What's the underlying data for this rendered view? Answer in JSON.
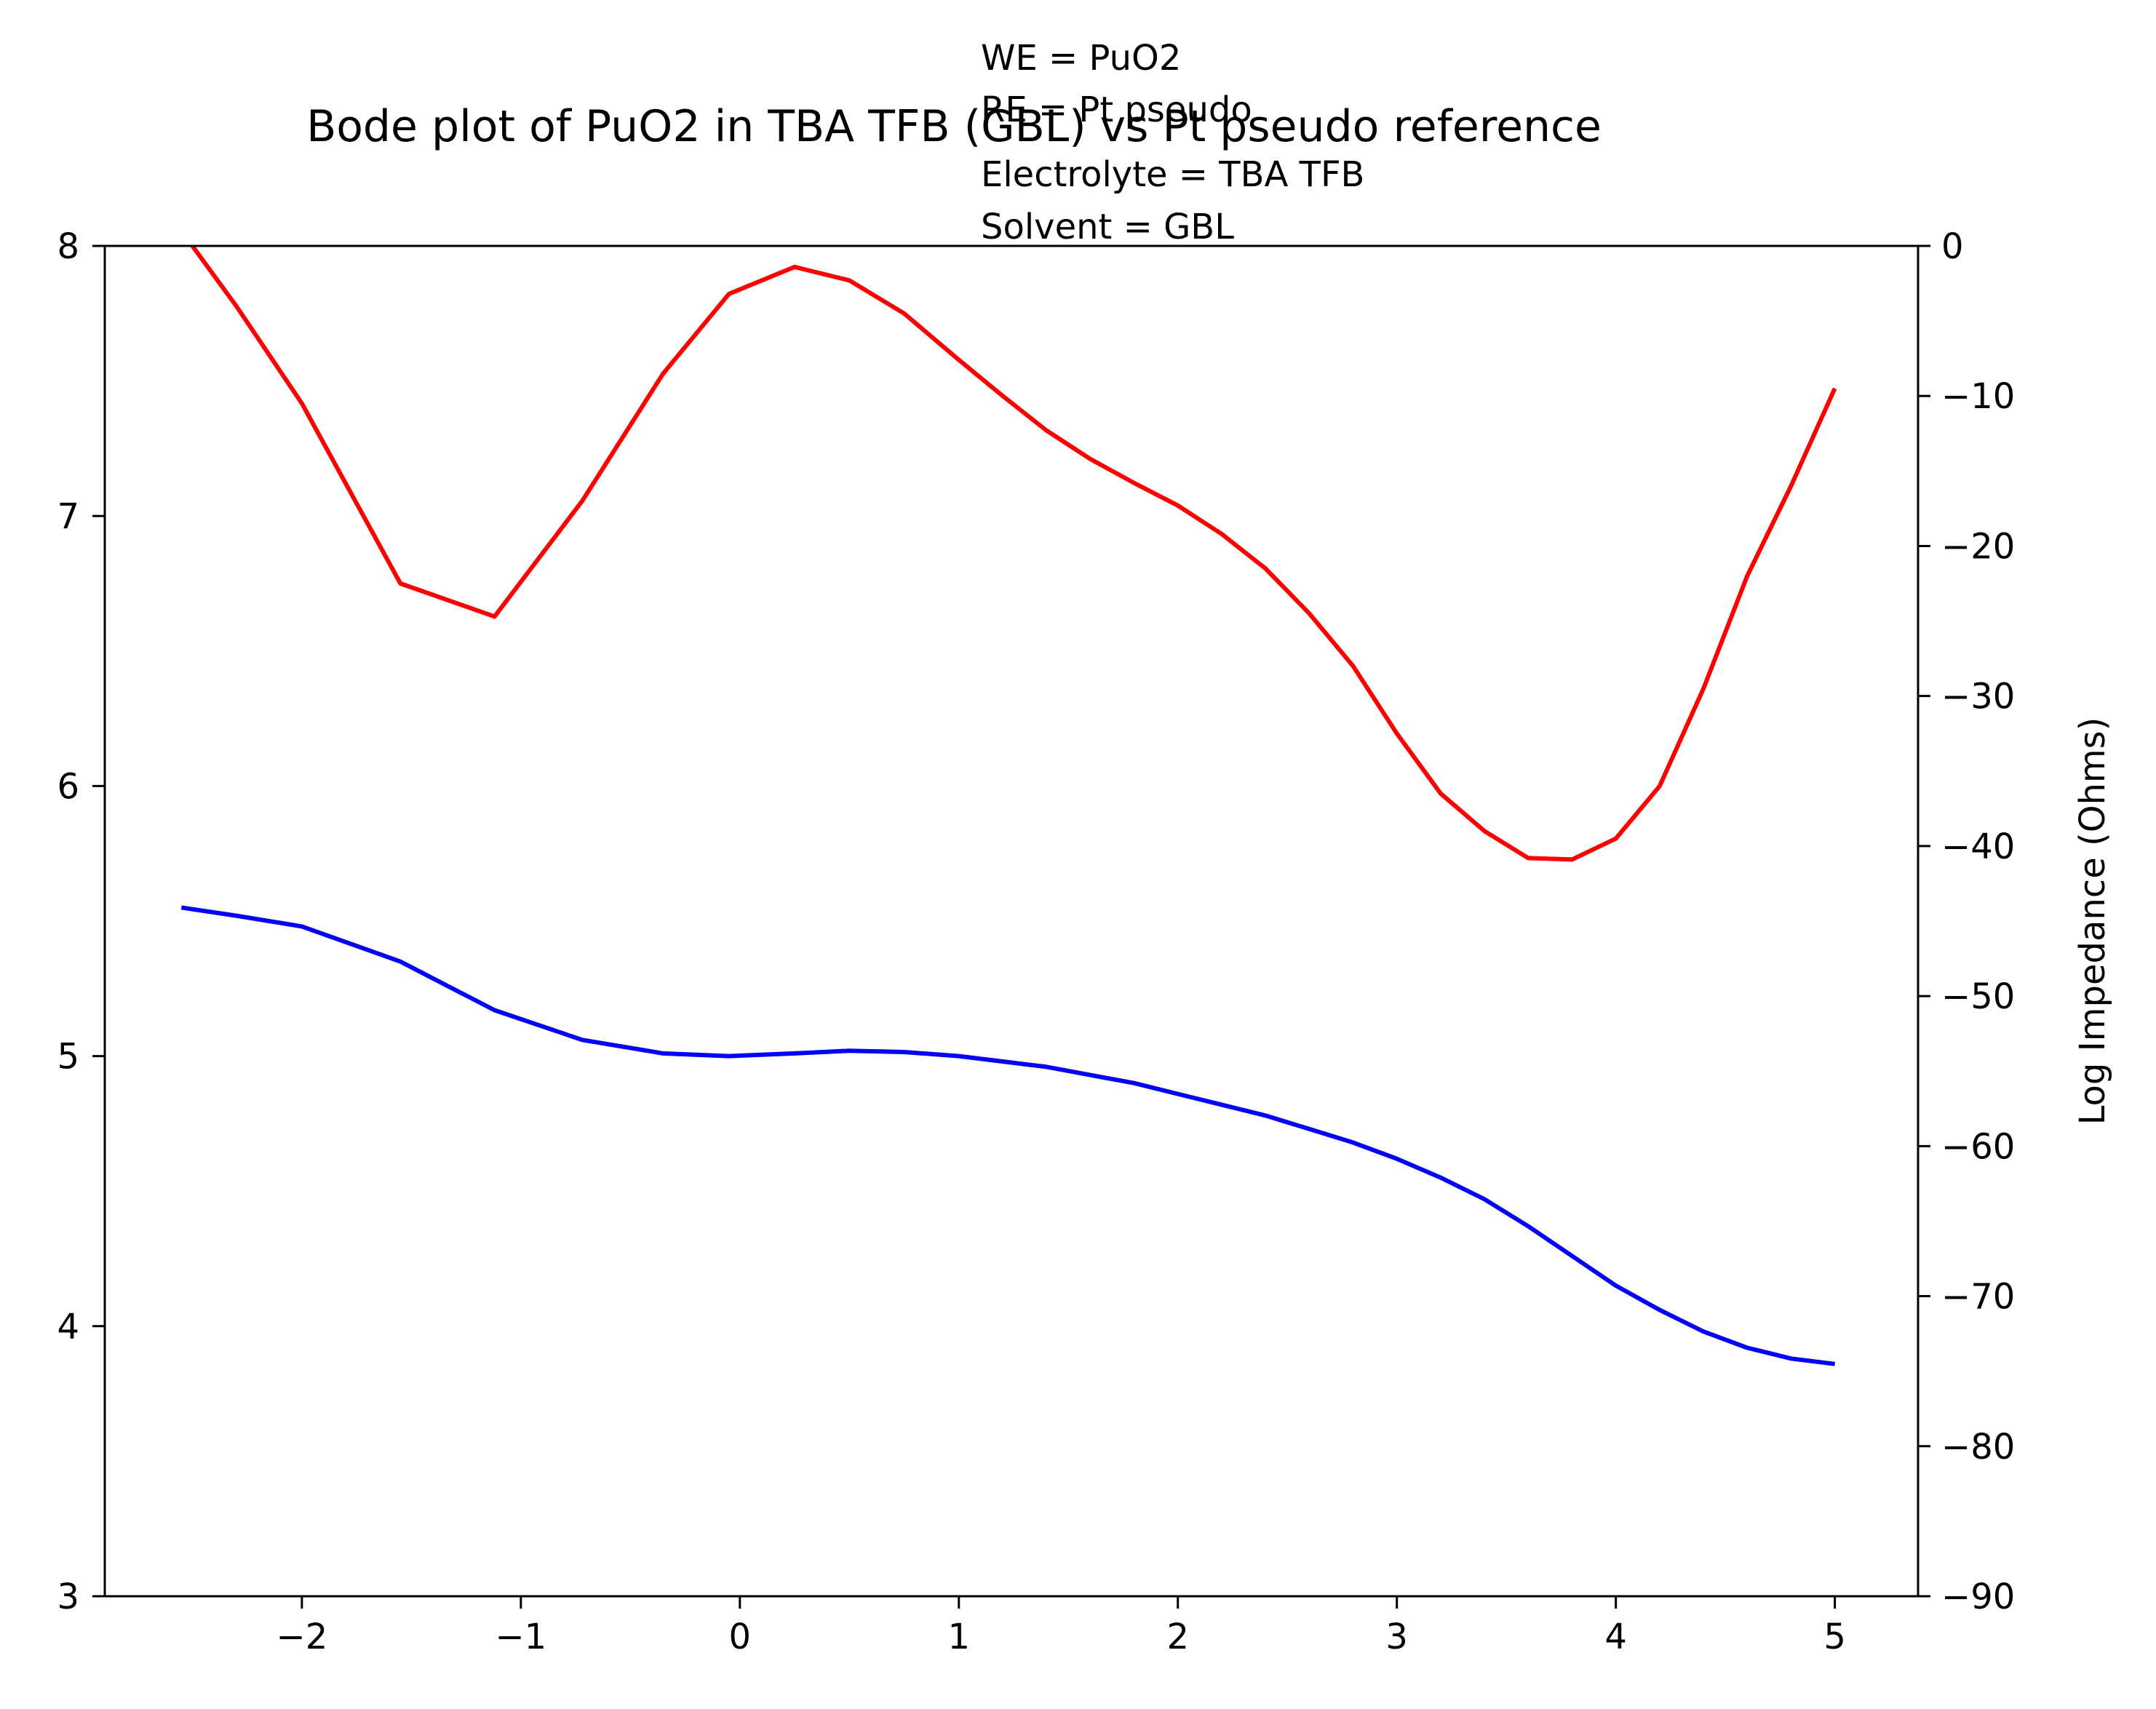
{
  "chart_data": {
    "type": "line",
    "title": "Bode plot of PuO2 in TBA TFB (GBL) vs Pt pseudo reference",
    "annotations": [
      "WE = PuO2",
      "RE = Pt pseudo",
      "Electrolyte = TBA TFB",
      "Solvent = GBL"
    ],
    "xlabel": "",
    "ylabel_left": "",
    "ylabel_right": "Log Impedance (Ohms)",
    "xlim": [
      -2.9,
      5.38
    ],
    "ylim_left": [
      3,
      8
    ],
    "ylim_right": [
      -90,
      0
    ],
    "x_ticks": [
      -2,
      -1,
      0,
      1,
      2,
      3,
      4,
      5
    ],
    "x_tick_labels": [
      "−2",
      "−1",
      "0",
      "1",
      "2",
      "3",
      "4",
      "5"
    ],
    "y_left_ticks": [
      3,
      4,
      5,
      6,
      7,
      8
    ],
    "y_left_tick_labels": [
      "3",
      "4",
      "5",
      "6",
      "7",
      "8"
    ],
    "y_right_ticks": [
      0,
      -10,
      -20,
      -30,
      -40,
      -50,
      -60,
      -70,
      -80,
      -90
    ],
    "y_right_tick_labels": [
      "0",
      "−10",
      "−20",
      "−30",
      "−40",
      "−50",
      "−60",
      "−70",
      "−80",
      "−90"
    ],
    "grid": false,
    "series": [
      {
        "axis": "left",
        "color": "#0000ff",
        "x": [
          -2.55,
          -2.3,
          -2.0,
          -1.55,
          -1.12,
          -0.72,
          -0.35,
          -0.05,
          0.25,
          0.5,
          0.75,
          1.0,
          1.2,
          1.4,
          1.6,
          1.8,
          2.0,
          2.2,
          2.4,
          2.6,
          2.8,
          3.0,
          3.2,
          3.4,
          3.6,
          3.8,
          4.0,
          4.2,
          4.4,
          4.6,
          4.8,
          5.0
        ],
        "values": [
          5.55,
          5.52,
          5.48,
          5.35,
          5.17,
          5.06,
          5.01,
          5.0,
          5.01,
          5.02,
          5.015,
          5.0,
          4.98,
          4.96,
          4.93,
          4.9,
          4.86,
          4.82,
          4.78,
          4.73,
          4.68,
          4.62,
          4.55,
          4.47,
          4.37,
          4.26,
          4.15,
          4.06,
          3.98,
          3.92,
          3.88,
          3.86
        ]
      },
      {
        "axis": "right",
        "color": "#ff0000",
        "x": [
          -2.5,
          -2.3,
          -2.0,
          -1.55,
          -1.12,
          -0.72,
          -0.35,
          -0.05,
          0.25,
          0.5,
          0.75,
          1.0,
          1.2,
          1.4,
          1.6,
          1.8,
          2.0,
          2.2,
          2.4,
          2.6,
          2.8,
          3.0,
          3.2,
          3.4,
          3.6,
          3.8,
          4.0,
          4.2,
          4.4,
          4.6,
          4.8,
          5.0
        ],
        "values": [
          0.0,
          -4.0,
          -10.5,
          -22.5,
          -24.7,
          -17.0,
          -8.5,
          -3.2,
          -1.4,
          -2.3,
          -4.5,
          -7.6,
          -10.0,
          -12.3,
          -14.2,
          -15.8,
          -17.3,
          -19.2,
          -21.5,
          -24.5,
          -28.0,
          -32.5,
          -36.5,
          -39.0,
          -40.8,
          -40.9,
          -39.5,
          -36.0,
          -29.5,
          -22.0,
          -16.0,
          -9.5
        ]
      }
    ]
  }
}
